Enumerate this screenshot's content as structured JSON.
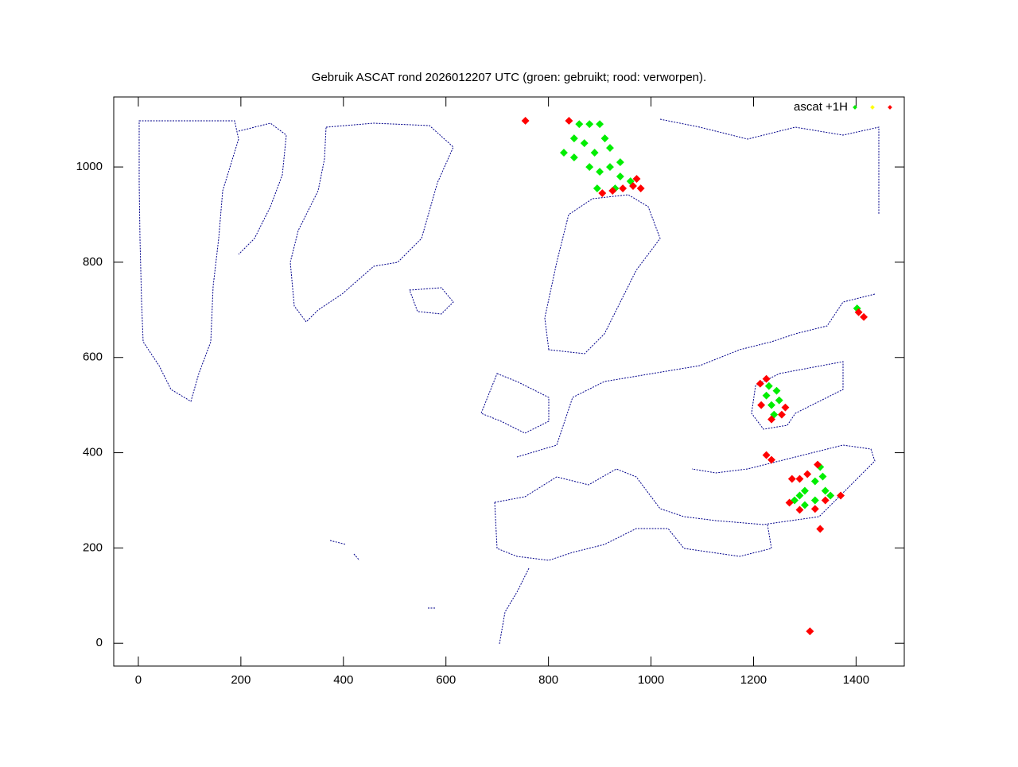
{
  "chart_data": {
    "type": "scatter",
    "title": "Gebruik ASCAT rond 2026012207 UTC (groen: gebruikt; rood: verworpen).",
    "xlim": [
      -48,
      1494
    ],
    "ylim": [
      -48,
      1147
    ],
    "xticks": [
      0,
      200,
      400,
      600,
      800,
      1000,
      1200,
      1400
    ],
    "yticks": [
      0,
      200,
      400,
      600,
      800,
      1000
    ],
    "legend": "top-right",
    "series": [
      {
        "name": "ascat +1H",
        "color": "#00ee00",
        "x": [
          830,
          850,
          860,
          880,
          870,
          890,
          910,
          900,
          920,
          940,
          960,
          930,
          880,
          850,
          900,
          920,
          940,
          895,
          1225,
          1235,
          1240,
          1250,
          1230,
          1245,
          1280,
          1300,
          1320,
          1330,
          1340,
          1320,
          1350,
          1300,
          1290,
          1335,
          1402
        ],
        "values": [
          1030,
          1060,
          1090,
          1090,
          1050,
          1030,
          1060,
          990,
          1000,
          980,
          970,
          955,
          1000,
          1020,
          1090,
          1040,
          1010,
          955,
          520,
          500,
          480,
          510,
          540,
          530,
          300,
          320,
          340,
          370,
          320,
          300,
          310,
          290,
          310,
          350,
          703
        ]
      },
      {
        "color": "#ffff00",
        "x": [],
        "values": []
      },
      {
        "color": "#ff0000",
        "x": [
          905,
          925,
          945,
          965,
          980,
          972,
          840,
          755,
          1213,
          1225,
          1215,
          1235,
          1255,
          1262,
          1405,
          1415,
          1270,
          1290,
          1320,
          1340,
          1370,
          1305,
          1325,
          1275,
          1290,
          1225,
          1235,
          1330,
          1310
        ],
        "values": [
          945,
          950,
          955,
          960,
          955,
          975,
          1097,
          1097,
          545,
          555,
          500,
          470,
          480,
          495,
          695,
          685,
          295,
          280,
          282,
          300,
          310,
          355,
          375,
          345,
          345,
          395,
          385,
          240,
          25
        ]
      }
    ]
  }
}
